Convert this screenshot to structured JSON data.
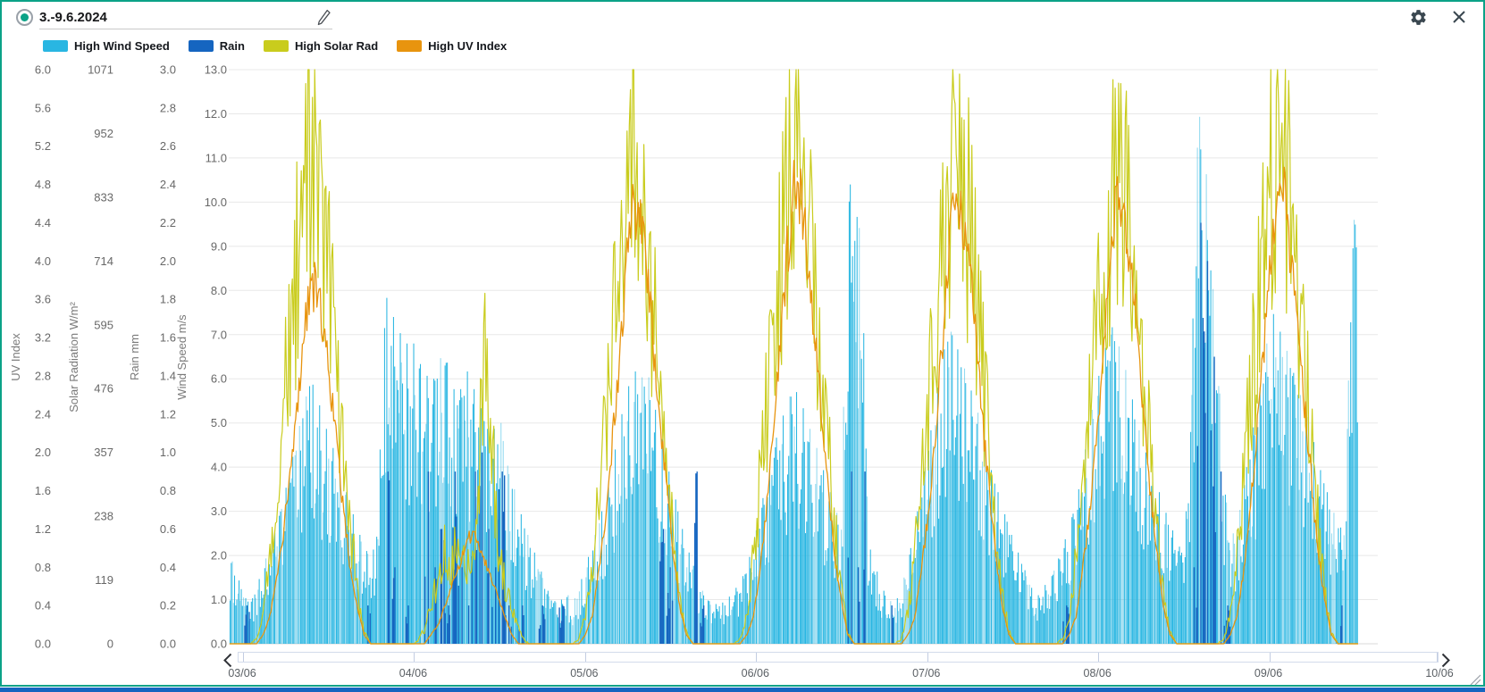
{
  "window": {
    "border_color": "#0ba287",
    "bottom_bar_color": "#1565c0",
    "background": "#ffffff"
  },
  "header": {
    "date_range": "3.-9.6.2024",
    "radio_selected": true,
    "radio_color": "#0ba287"
  },
  "icons": {
    "selected_radio": "radio-icon",
    "edit": "pencil-icon",
    "settings": "gear-icon",
    "close": "close-icon",
    "scroll_left": "chevron-left-icon",
    "scroll_right": "chevron-right-icon",
    "resize": "resize-handle-icon"
  },
  "chart_data": {
    "type": "mixed",
    "title": "",
    "x_tick_labels": [
      "03/06",
      "04/06",
      "05/06",
      "06/06",
      "07/06",
      "08/06",
      "09/06",
      "10/06"
    ],
    "x_range_days": 7,
    "grid": "horizontal",
    "axes": [
      {
        "id": "uv",
        "title": "UV Index",
        "min": 0,
        "max": 6,
        "ticks": [
          "6.0",
          "5.6",
          "5.2",
          "4.8",
          "4.4",
          "4.0",
          "3.6",
          "3.2",
          "2.8",
          "2.4",
          "2.0",
          "1.6",
          "1.2",
          "0.8",
          "0.4",
          "0.0"
        ]
      },
      {
        "id": "solar",
        "title": "Solar Radiation W/m²",
        "min": 0,
        "max": 1071,
        "ticks": [
          "1071",
          "952",
          "833",
          "714",
          "595",
          "476",
          "357",
          "238",
          "119",
          "0"
        ]
      },
      {
        "id": "rain",
        "title": "Rain mm",
        "min": 0,
        "max": 3,
        "ticks": [
          "3.0",
          "2.8",
          "2.6",
          "2.4",
          "2.2",
          "2.0",
          "1.8",
          "1.6",
          "1.4",
          "1.2",
          "1.0",
          "0.8",
          "0.6",
          "0.4",
          "0.2",
          "0.0"
        ]
      },
      {
        "id": "wind",
        "title": "Wind Speed m/s",
        "min": 0,
        "max": 13,
        "ticks": [
          "13.0",
          "12.0",
          "11.0",
          "10.0",
          "9.0",
          "8.0",
          "7.0",
          "6.0",
          "5.0",
          "4.0",
          "3.0",
          "2.0",
          "1.0",
          "0.0"
        ]
      }
    ],
    "series": [
      {
        "id": "wind",
        "name": "High Wind Speed",
        "chart_type": "bar",
        "color": "#29b6e2",
        "axis": "wind",
        "unit": "m/s",
        "daily_hourly": [
          [
            2.0,
            1.6,
            1.1,
            0.9,
            1.3,
            1.8,
            2.2,
            2.7,
            3.3,
            4.0,
            4.7,
            5.4,
            6.0,
            5.6,
            5.0,
            4.6,
            4.1,
            3.6,
            3.1,
            2.6,
            2.2,
            1.9,
            2.6,
            8.0
          ],
          [
            7.5,
            7.2,
            6.7,
            7.0,
            6.4,
            6.2,
            5.8,
            6.4,
            6.6,
            5.9,
            5.5,
            6.3,
            5.9,
            5.5,
            5.0,
            4.6,
            5.4,
            4.2,
            3.7,
            3.1,
            2.6,
            2.2,
            1.8,
            1.3
          ],
          [
            1.0,
            0.9,
            1.2,
            0.9,
            1.3,
            1.8,
            2.3,
            2.8,
            3.4,
            4.1,
            5.0,
            5.6,
            6.3,
            5.9,
            6.3,
            5.5,
            4.9,
            4.1,
            3.5,
            2.8,
            2.2,
            1.8,
            1.3,
            1.0
          ],
          [
            0.9,
            0.9,
            1.0,
            1.2,
            1.4,
            1.8,
            2.3,
            3.1,
            3.7,
            4.5,
            5.0,
            5.5,
            5.8,
            5.5,
            5.0,
            4.6,
            4.1,
            3.6,
            3.1,
            2.7,
            10.7,
            9.8,
            9.4,
            2.3
          ],
          [
            1.8,
            1.3,
            1.0,
            0.9,
            1.3,
            1.9,
            2.7,
            3.6,
            4.5,
            5.5,
            6.4,
            7.2,
            6.8,
            6.4,
            5.9,
            5.4,
            4.9,
            4.1,
            3.6,
            3.1,
            2.6,
            2.2,
            1.8,
            1.4
          ],
          [
            1.0,
            1.3,
            1.4,
            1.8,
            2.2,
            2.7,
            3.2,
            4.1,
            5.0,
            5.9,
            6.4,
            7.3,
            6.9,
            6.4,
            5.8,
            5.0,
            4.5,
            4.0,
            3.6,
            3.1,
            2.7,
            2.3,
            2.0,
            5.0
          ],
          [
            12.1,
            11.6,
            8.7,
            6.7,
            3.6,
            2.4,
            2.7,
            3.7,
            4.6,
            5.5,
            6.4,
            7.6,
            7.2,
            6.8,
            6.3,
            5.8,
            5.3,
            4.8,
            4.1,
            3.6,
            3.1,
            2.7,
            2.5,
            9.6
          ]
        ]
      },
      {
        "id": "rain",
        "name": "Rain",
        "chart_type": "bar",
        "color": "#1565c0",
        "axis": "rain",
        "unit": "mm",
        "daily_hourly": [
          [
            0,
            0,
            0.2,
            0,
            0,
            0,
            0,
            0,
            0,
            0,
            0,
            0,
            0,
            0,
            0,
            0,
            0,
            0,
            0,
            0,
            0.2,
            0,
            0,
            0.9
          ],
          [
            0.4,
            0,
            0.2,
            0,
            0,
            0.9,
            0.4,
            0.6,
            0.2,
            0.9,
            0.4,
            0.2,
            0.9,
            1.0,
            0.6,
            0.4,
            0.9,
            0.2,
            0,
            0.2,
            0,
            0,
            0.2,
            0
          ],
          [
            0,
            0.2,
            0,
            0,
            0,
            0,
            0,
            0,
            0,
            0,
            0,
            0,
            0,
            0,
            0,
            0,
            0.6,
            0.4,
            0,
            0,
            0,
            0.9,
            0.2,
            0
          ],
          [
            0,
            0,
            0,
            0,
            0,
            0,
            0,
            0,
            0,
            0,
            0,
            0,
            0,
            0,
            0,
            0,
            0,
            0,
            0,
            0,
            0.9,
            0.4,
            0.9,
            0
          ],
          [
            0,
            0,
            0.2,
            0,
            0,
            0,
            0,
            0,
            0,
            0,
            0,
            0,
            0,
            0,
            0,
            0,
            0,
            0,
            0,
            0,
            0,
            0,
            0,
            0
          ],
          [
            0,
            0,
            0,
            0,
            0.2,
            0,
            0,
            0,
            0,
            0,
            0,
            0,
            0,
            0,
            0,
            0,
            0,
            0,
            0,
            0,
            0,
            0,
            0,
            0.4
          ],
          [
            2.2,
            2.0,
            1.5,
            0.9,
            0.2,
            0,
            0,
            0,
            0,
            0,
            0,
            0,
            0,
            0,
            0,
            0,
            0,
            0,
            0,
            0,
            0,
            0.2,
            0,
            0
          ]
        ]
      },
      {
        "id": "solar",
        "name": "High Solar Rad",
        "chart_type": "line",
        "color": "#c9cc1d",
        "axis": "solar",
        "unit": "W/m²",
        "daily_hourly": [
          [
            0,
            0,
            0,
            0,
            10,
            60,
            170,
            330,
            490,
            640,
            770,
            880,
            990,
            955,
            830,
            705,
            555,
            400,
            240,
            110,
            25,
            0,
            0,
            0
          ],
          [
            0,
            0,
            0,
            0,
            5,
            30,
            80,
            130,
            200,
            165,
            225,
            185,
            145,
            320,
            650,
            420,
            210,
            120,
            70,
            30,
            5,
            0,
            0,
            0
          ],
          [
            0,
            0,
            0,
            0,
            10,
            60,
            170,
            330,
            485,
            635,
            765,
            870,
            980,
            945,
            820,
            700,
            550,
            395,
            235,
            105,
            25,
            0,
            0,
            0
          ],
          [
            0,
            0,
            0,
            0,
            10,
            65,
            180,
            345,
            510,
            665,
            800,
            940,
            1050,
            1015,
            880,
            745,
            590,
            420,
            250,
            115,
            25,
            0,
            0,
            0
          ],
          [
            0,
            0,
            0,
            0,
            10,
            65,
            180,
            345,
            505,
            660,
            795,
            935,
            1045,
            1010,
            875,
            740,
            585,
            420,
            250,
            115,
            25,
            0,
            0,
            0
          ],
          [
            0,
            0,
            0,
            0,
            10,
            60,
            170,
            330,
            485,
            640,
            770,
            875,
            985,
            950,
            825,
            700,
            550,
            395,
            235,
            105,
            25,
            0,
            0,
            0
          ],
          [
            0,
            0,
            0,
            0,
            10,
            65,
            185,
            350,
            515,
            675,
            810,
            955,
            1070,
            1035,
            895,
            760,
            600,
            430,
            255,
            115,
            25,
            0,
            0,
            0
          ]
        ]
      },
      {
        "id": "uv",
        "name": "High UV Index",
        "chart_type": "line",
        "color": "#e8940e",
        "axis": "uv",
        "unit": "",
        "daily_hourly": [
          [
            0,
            0,
            0,
            0,
            0,
            0.1,
            0.3,
            0.7,
            1.2,
            1.8,
            2.5,
            3.3,
            3.9,
            3.8,
            3.4,
            2.8,
            2.1,
            1.4,
            0.8,
            0.4,
            0.1,
            0,
            0,
            0
          ],
          [
            0,
            0,
            0,
            0,
            0,
            0,
            0.1,
            0.2,
            0.4,
            0.6,
            0.8,
            1.0,
            1.2,
            1.1,
            0.9,
            0.7,
            0.5,
            0.3,
            0.1,
            0,
            0,
            0,
            0,
            0
          ],
          [
            0,
            0,
            0,
            0,
            0,
            0.1,
            0.3,
            0.8,
            1.4,
            2.2,
            3.0,
            4.0,
            4.7,
            4.6,
            4.1,
            3.3,
            2.5,
            1.7,
            1.0,
            0.4,
            0.1,
            0,
            0,
            0
          ],
          [
            0,
            0,
            0,
            0,
            0,
            0.1,
            0.3,
            0.8,
            1.5,
            2.3,
            3.2,
            4.2,
            4.9,
            4.8,
            4.2,
            3.4,
            2.6,
            1.8,
            1.0,
            0.5,
            0.1,
            0,
            0,
            0
          ],
          [
            0,
            0,
            0,
            0,
            0,
            0.1,
            0.3,
            0.8,
            1.4,
            2.2,
            3.1,
            4.1,
            4.8,
            4.7,
            4.1,
            3.4,
            2.5,
            1.7,
            1.0,
            0.4,
            0.1,
            0,
            0,
            0
          ],
          [
            0,
            0,
            0,
            0,
            0,
            0.1,
            0.3,
            0.8,
            1.4,
            2.2,
            3.1,
            4.1,
            4.8,
            4.7,
            4.2,
            3.4,
            2.6,
            1.7,
            1.0,
            0.4,
            0.1,
            0,
            0,
            0
          ],
          [
            0,
            0,
            0,
            0,
            0,
            0.1,
            0.3,
            0.8,
            1.5,
            2.3,
            3.2,
            4.2,
            4.9,
            4.8,
            4.2,
            3.5,
            2.6,
            1.8,
            1.0,
            0.5,
            0.1,
            0,
            0,
            0
          ]
        ]
      }
    ]
  }
}
